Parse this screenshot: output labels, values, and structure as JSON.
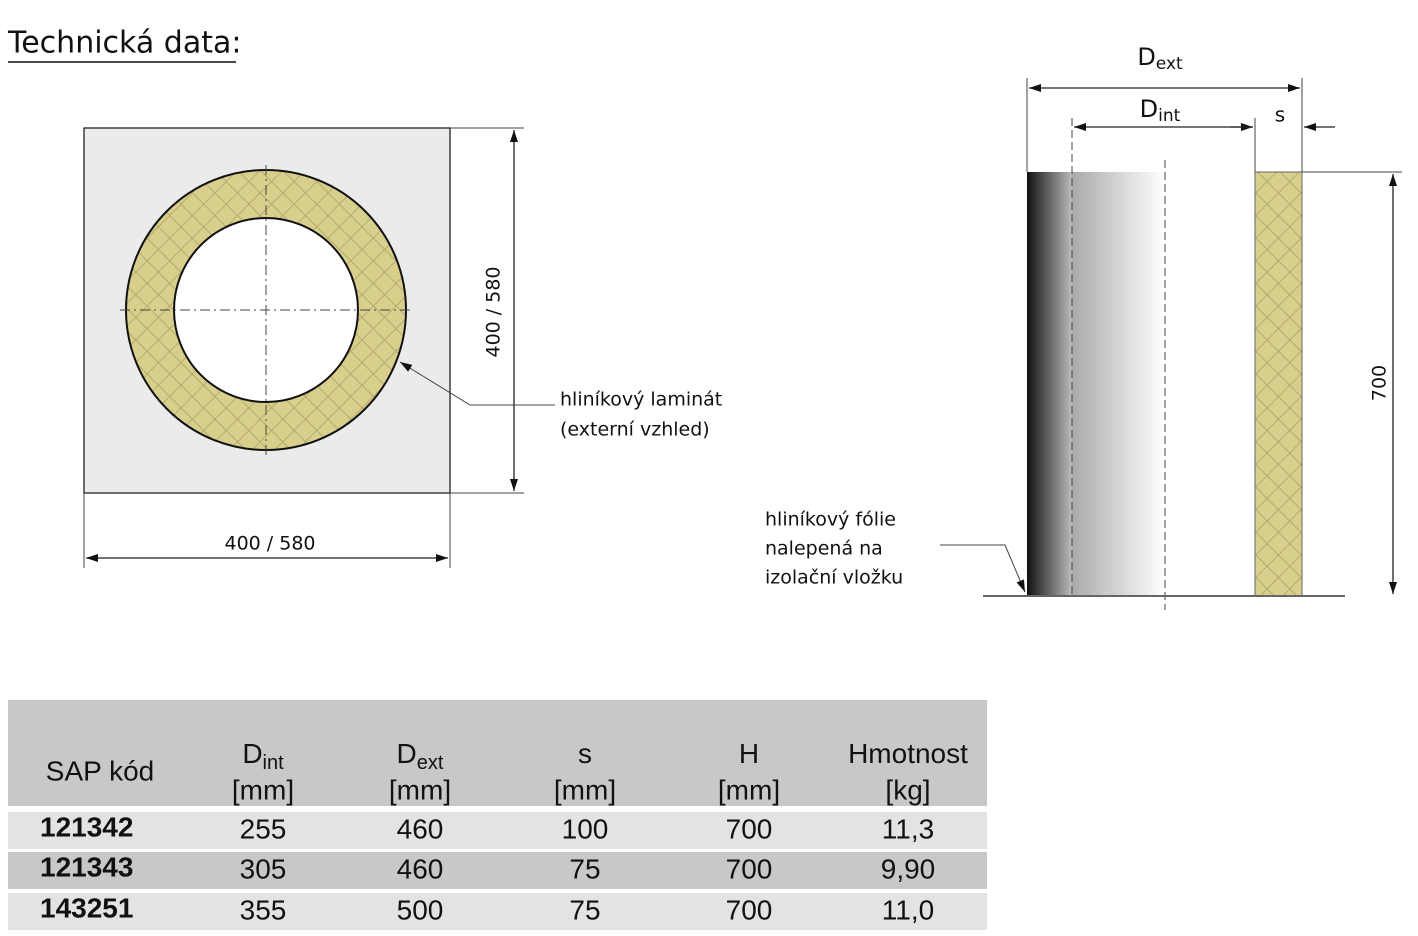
{
  "header": {
    "title": "Technická data:"
  },
  "front_view": {
    "width_label": "400 / 580",
    "height_label": "400 / 580",
    "callout": [
      "hliníkový laminát",
      "(externí vzhled)"
    ]
  },
  "side_view": {
    "d_ext": {
      "main": "D",
      "sub": "ext"
    },
    "d_int": {
      "main": "D",
      "sub": "int"
    },
    "s": "s",
    "height_label": "700",
    "callout": [
      "hliníkový fólie",
      "nalepená na",
      "izolační vložku"
    ]
  },
  "table": {
    "columns": [
      {
        "name": "SAP kód"
      },
      {
        "name": "D",
        "sub": "int",
        "unit": "[mm]"
      },
      {
        "name": "D",
        "sub": "ext",
        "unit": "[mm]"
      },
      {
        "name": "s",
        "unit": "[mm]"
      },
      {
        "name": "H",
        "unit": "[mm]"
      },
      {
        "name": "Hmotnost",
        "unit": "[kg]"
      }
    ],
    "rows": [
      [
        "121342",
        "255",
        "460",
        "100",
        "700",
        "11,3"
      ],
      [
        "121343",
        "305",
        "460",
        "75",
        "700",
        "9,90"
      ],
      [
        "143251",
        "355",
        "500",
        "75",
        "700",
        "11,0"
      ]
    ]
  }
}
